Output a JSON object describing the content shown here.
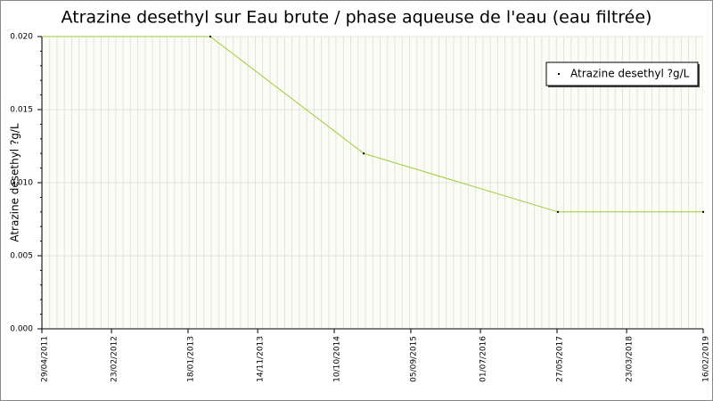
{
  "chart_data": {
    "type": "line",
    "title": "Atrazine desethyl sur Eau brute / phase aqueuse de l'eau (eau filtrée)",
    "y_label": "Atrazine desethyl ?g/L",
    "x": [
      "2011-04-29",
      "2013-04-24",
      "2015-02-14",
      "2017-05-31",
      "2019-02-16"
    ],
    "series": [
      {
        "name": "Atrazine desethyl ?g/L",
        "color": "#9acd32",
        "values": [
          0.02,
          0.02,
          0.012,
          0.008,
          0.008
        ]
      }
    ],
    "xlim": [
      "2011-04-29",
      "2019-02-16"
    ],
    "xticks": [
      {
        "value": "2011-04-29",
        "label": "29/04/2011"
      },
      {
        "value": "2012-02-23",
        "label": "23/02/2012"
      },
      {
        "value": "2013-01-18",
        "label": "18/01/2013"
      },
      {
        "value": "2013-11-14",
        "label": "14/11/2013"
      },
      {
        "value": "2014-10-10",
        "label": "10/10/2014"
      },
      {
        "value": "2015-09-05",
        "label": "05/09/2015"
      },
      {
        "value": "2016-07-01",
        "label": "01/07/2016"
      },
      {
        "value": "2017-05-27",
        "label": "27/05/2017"
      },
      {
        "value": "2018-03-23",
        "label": "23/03/2018"
      },
      {
        "value": "2019-02-16",
        "label": "16/02/2019"
      }
    ],
    "ylim": [
      0,
      0.02
    ],
    "yticks": [
      {
        "value": 0,
        "label": "0.000"
      },
      {
        "value": 0.005,
        "label": "0.005"
      },
      {
        "value": 0.01,
        "label": "0.010"
      },
      {
        "value": 0.015,
        "label": "0.015"
      },
      {
        "value": 0.02,
        "label": "0.020"
      }
    ],
    "grid": true,
    "legend": "upper right"
  }
}
